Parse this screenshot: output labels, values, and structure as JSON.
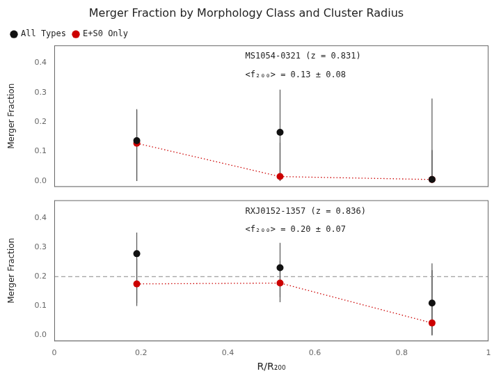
{
  "chart_data": [
    {
      "type": "scatter",
      "title": "Merger Fraction by Morphology Class and Cluster Radius",
      "ylabel": "Merger Fraction",
      "annotations": [
        "MS1054-0321 (z = 0.831)",
        "<f₂₀₀> = 0.13 ± 0.08"
      ],
      "series": [
        {
          "name": "All Types",
          "color": "#111111",
          "x": [
            0.19,
            0.52,
            0.87
          ],
          "values": [
            0.137,
            0.165,
            0.005
          ],
          "yerr_lo": [
            0.137,
            0.165,
            0.005
          ],
          "yerr_hi": [
            0.107,
            0.145,
            0.275
          ]
        },
        {
          "name": "E+S0 Only",
          "color": "#cc0000",
          "line_style": "dotted",
          "x": [
            0.19,
            0.52,
            0.87
          ],
          "values": [
            0.128,
            0.015,
            0.005
          ],
          "yerr_lo": [
            0.128,
            0.015,
            0.005
          ],
          "yerr_hi": [
            0.112,
            0.115,
            0.1
          ]
        }
      ],
      "xlim": [
        0,
        1
      ],
      "xticks": [
        0,
        0.2,
        0.4,
        0.6,
        0.8,
        1
      ],
      "ylim": [
        -0.02,
        0.46
      ],
      "yticks": [
        {
          "value": 0,
          "label": "0.0"
        },
        0.1,
        0.2,
        0.3,
        0.4
      ],
      "tick_labels": "y",
      "grid": false,
      "legend": "upper left"
    },
    {
      "type": "scatter",
      "xlabel": "R/R₂₀₀",
      "ylabel": "Merger Fraction",
      "annotations": [
        "RXJ0152-1357 (z = 0.836)",
        "<f₂₀₀> = 0.20 ± 0.07"
      ],
      "series": [
        {
          "color": "#111111",
          "x": [
            0.19,
            0.52,
            0.87
          ],
          "values": [
            0.278,
            0.23,
            0.11
          ],
          "yerr_lo": [
            0.168,
            0.1,
            0.11
          ],
          "yerr_hi": [
            0.072,
            0.085,
            0.135
          ]
        },
        {
          "color": "#cc0000",
          "line_style": "dotted",
          "x": [
            0.19,
            0.52,
            0.87
          ],
          "values": [
            0.175,
            0.178,
            0.042
          ],
          "yerr_lo": [
            0.075,
            0.065,
            0.042
          ],
          "yerr_hi": [
            0.085,
            0.075,
            0.18
          ]
        }
      ],
      "reference_lines": [
        {
          "y": 0.2,
          "line_style": "dashed",
          "color": "#888888"
        }
      ],
      "xlim": [
        0,
        1
      ],
      "xticks": [
        0,
        0.2,
        0.4,
        0.6,
        0.8,
        1
      ],
      "ylim": [
        -0.02,
        0.46
      ],
      "yticks": [
        {
          "value": 0,
          "label": "0.0"
        },
        0.1,
        0.2,
        0.3,
        0.4
      ],
      "grid": false
    }
  ]
}
